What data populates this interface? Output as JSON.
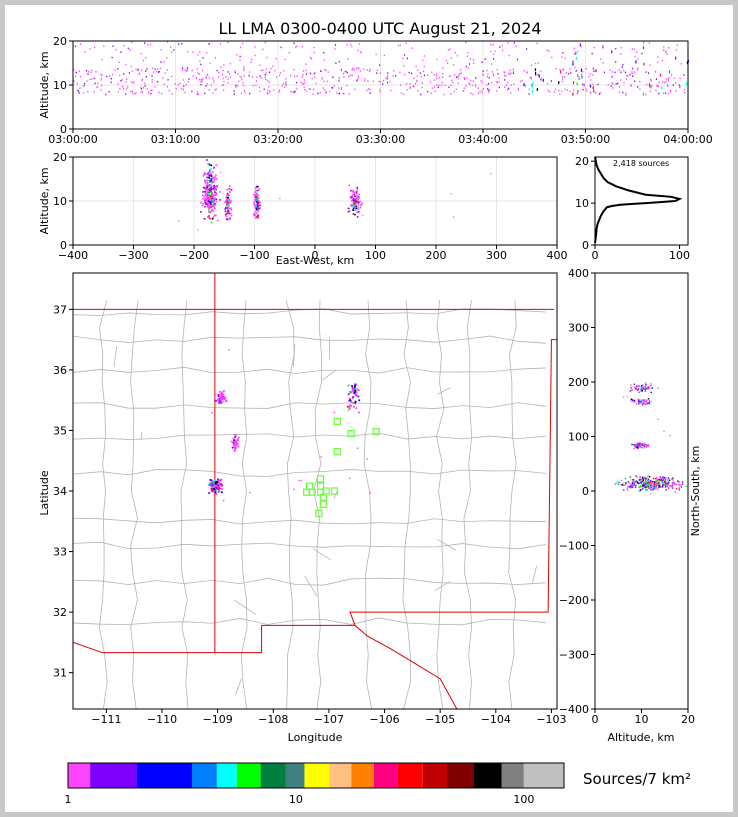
{
  "title": "LL LMA 0300-0400 UTC August 21, 2024",
  "colors": {
    "border": "#c8c8c8",
    "state_line": "#e00000",
    "county_line": "#b4b4b4",
    "station": "#66ff33"
  },
  "source_count_label": "2,418 sources",
  "chart_data": [
    {
      "id": "time-height",
      "type": "scatter",
      "ylabel": "Altitude, km",
      "x_ticks": [
        "03:00:00",
        "03:10:00",
        "03:20:00",
        "03:30:00",
        "03:40:00",
        "03:50:00",
        "04:00:00"
      ],
      "xlim": [
        "03:00:00",
        "04:00:00"
      ],
      "ylim": [
        0,
        20
      ],
      "y_ticks": [
        0,
        10,
        20
      ],
      "grid": true,
      "source_band_km": [
        8,
        20
      ]
    },
    {
      "id": "east-west-altitude",
      "type": "scatter",
      "xlabel": "East-West, km",
      "ylabel": "Altitude, km",
      "xlim": [
        -400,
        400
      ],
      "x_ticks": [
        -400,
        -300,
        -200,
        -100,
        0,
        100,
        200,
        300,
        400
      ],
      "ylim": [
        0,
        20
      ],
      "y_ticks": [
        0,
        10,
        20
      ],
      "grid": true,
      "clusters": [
        {
          "x": -175,
          "y": 12,
          "dx": 12,
          "dy": 5
        },
        {
          "x": -145,
          "y": 10,
          "dx": 5,
          "dy": 3
        },
        {
          "x": -97,
          "y": 9.5,
          "dx": 5,
          "dy": 3
        },
        {
          "x": 65,
          "y": 10,
          "dx": 9,
          "dy": 2.5
        }
      ]
    },
    {
      "id": "altitude-histogram",
      "type": "line",
      "xlim": [
        0,
        110
      ],
      "x_ticks": [
        0,
        100
      ],
      "ylim": [
        0,
        21
      ],
      "y_ticks": [
        0,
        10,
        20
      ],
      "x": [
        0,
        1,
        2,
        3,
        5,
        7,
        10,
        14,
        20,
        30,
        45,
        60,
        75,
        95,
        100,
        90,
        60,
        40,
        25,
        15,
        10,
        7,
        4,
        2,
        1,
        0
      ],
      "y": [
        0.5,
        2,
        4,
        5,
        6,
        7,
        8,
        9,
        9.3,
        9.6,
        9.8,
        10,
        10.2,
        10.5,
        11,
        11.5,
        12,
        13,
        14,
        15,
        16,
        17,
        18,
        19,
        20,
        21
      ]
    },
    {
      "id": "plan-view",
      "type": "scatter",
      "xlabel": "Longitude",
      "ylabel": "Latitude",
      "xlim": [
        -111.6,
        -102.9
      ],
      "x_ticks": [
        -111,
        -110,
        -109,
        -108,
        -107,
        -106,
        -105,
        -104,
        -103
      ],
      "ylim": [
        30.4,
        37.6
      ],
      "y_ticks": [
        31,
        32,
        33,
        34,
        35,
        36,
        37
      ],
      "clusters": [
        {
          "lon": -109.05,
          "lat": 34.1,
          "dx": 0.12,
          "dy": 0.1
        },
        {
          "lon": -106.55,
          "lat": 35.6,
          "dx": 0.12,
          "dy": 0.25
        },
        {
          "lon": -108.7,
          "lat": 34.8,
          "dx": 0.05,
          "dy": 0.1
        },
        {
          "lon": -108.95,
          "lat": 35.55,
          "dx": 0.1,
          "dy": 0.1
        }
      ],
      "stations": [
        [
          -106.85,
          35.15
        ],
        [
          -106.6,
          34.95
        ],
        [
          -106.15,
          34.98
        ],
        [
          -106.85,
          34.65
        ],
        [
          -107.35,
          34.08
        ],
        [
          -107.15,
          34.2
        ],
        [
          -107.15,
          34.08
        ],
        [
          -107.4,
          33.98
        ],
        [
          -107.3,
          33.98
        ],
        [
          -107.15,
          33.98
        ],
        [
          -107.05,
          34.0
        ],
        [
          -106.9,
          34.0
        ],
        [
          -107.1,
          33.9
        ],
        [
          -107.1,
          33.78
        ],
        [
          -107.18,
          33.63
        ]
      ]
    },
    {
      "id": "altitude-north-south",
      "type": "scatter",
      "xlabel": "Altitude, km",
      "ylabel": "North-South, km",
      "xlim": [
        0,
        20
      ],
      "x_ticks": [
        0,
        10,
        20
      ],
      "ylim": [
        -400,
        400
      ],
      "y_ticks": [
        -400,
        -300,
        -200,
        -100,
        0,
        100,
        200,
        300,
        400
      ],
      "clusters": [
        {
          "alt": 12,
          "ns": 15,
          "dx": 6,
          "dy": 12
        },
        {
          "alt": 10,
          "ns": 190,
          "dx": 2.5,
          "dy": 8
        },
        {
          "alt": 10,
          "ns": 165,
          "dx": 2,
          "dy": 5
        },
        {
          "alt": 9.5,
          "ns": 85,
          "dx": 2,
          "dy": 5
        }
      ]
    },
    {
      "id": "colorbar",
      "type": "heatmap",
      "label": "Sources/7 km²",
      "scale": "log",
      "ticks": [
        "1",
        "10",
        "100"
      ],
      "bins": [
        1,
        1.25,
        2,
        3.5,
        4.5,
        5.5,
        7,
        9,
        10.9,
        14,
        17.5,
        22,
        28,
        36,
        46,
        60,
        80,
        100,
        150
      ],
      "bin_colors": [
        "#ff44ff",
        "#8000ff",
        "#0000ff",
        "#0080ff",
        "#00ffff",
        "#00ff00",
        "#008040",
        "#408080",
        "#ffff00",
        "#ffc080",
        "#ff8000",
        "#ff0080",
        "#ff0000",
        "#c00000",
        "#800000",
        "#000000",
        "#808080",
        "#c0c0c0",
        "#ffffff"
      ]
    }
  ]
}
